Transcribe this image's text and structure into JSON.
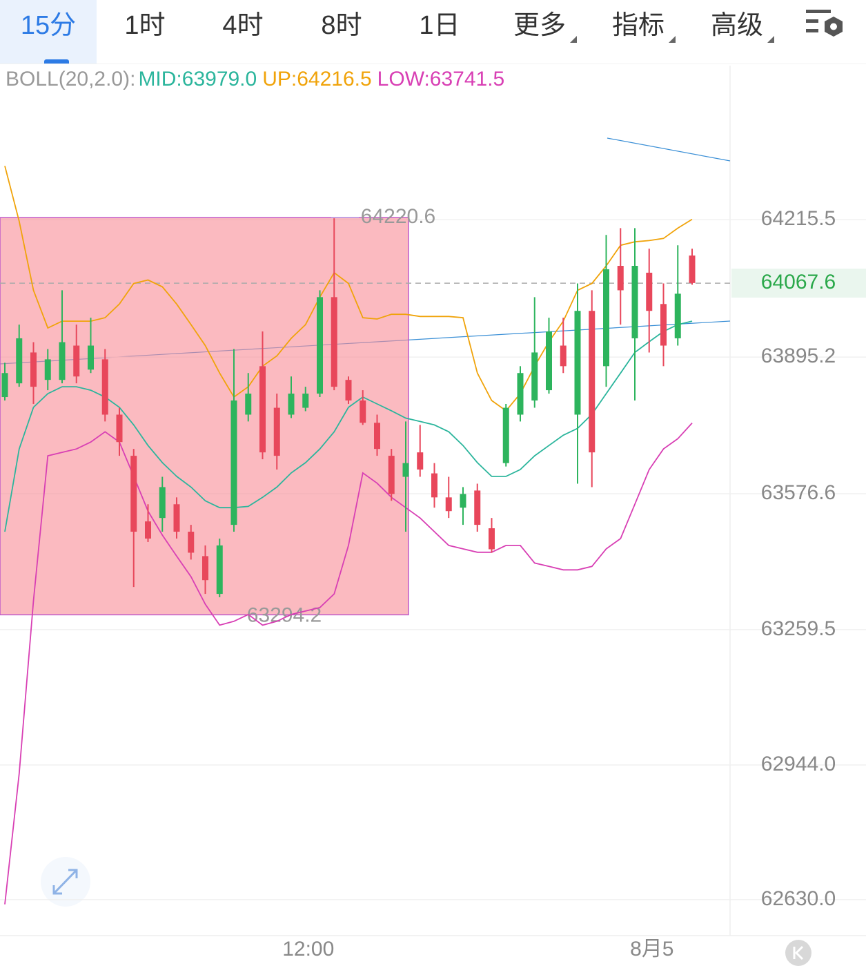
{
  "chart_data": {
    "type": "candlestick",
    "tabs": [
      "15分",
      "1时",
      "4时",
      "8时",
      "1日",
      "更多",
      "指标",
      "高级"
    ],
    "active_tab": 0,
    "indicator_label": "BOLL(20,2.0):",
    "up_color": "#2db45d",
    "down_color": "#e8475b",
    "categories": [
      null,
      null,
      null,
      null,
      null,
      null,
      null,
      null,
      null,
      null,
      null,
      null,
      null,
      null,
      null,
      null,
      null,
      null,
      null,
      null,
      null,
      "12:00",
      null,
      null,
      null,
      null,
      null,
      null,
      null,
      null,
      null,
      null,
      null,
      null,
      null,
      null,
      null,
      null,
      null,
      null,
      null,
      null,
      null,
      null,
      null,
      "8月5",
      null,
      null,
      null
    ],
    "open": [
      63802,
      63834,
      63906,
      63842,
      63842,
      63922,
      63866,
      63890,
      63761,
      63665,
      63512,
      63520,
      63552,
      63488,
      63431,
      63343,
      63504,
      63761,
      63874,
      63777,
      63761,
      63777,
      63810,
      64035,
      63842,
      63794,
      63742,
      63665,
      63616,
      63673,
      63624,
      63568,
      63544,
      63584,
      63496,
      63648,
      63761,
      63794,
      63818,
      63922,
      63761,
      64003,
      63874,
      64108,
      63939,
      64092,
      64019,
      63939,
      64132
    ],
    "high": [
      63882,
      63971,
      63930,
      63914,
      64051,
      63971,
      63987,
      63914,
      63777,
      63681,
      63552,
      63616,
      63568,
      63504,
      63456,
      63472,
      63914,
      63858,
      63955,
      63810,
      63850,
      63826,
      64051,
      64219,
      63850,
      63818,
      63761,
      63681,
      63745,
      63737,
      63648,
      63616,
      63592,
      63600,
      63520,
      63786,
      63874,
      64035,
      63987,
      63987,
      64067,
      64051,
      64180,
      64196,
      64196,
      64148,
      64067,
      64156,
      64148
    ],
    "low": [
      63794,
      63826,
      63786,
      63818,
      63834,
      63834,
      63858,
      63745,
      63665,
      63359,
      63464,
      63488,
      63472,
      63423,
      63343,
      63335,
      63488,
      63745,
      63657,
      63633,
      63753,
      63769,
      63802,
      63818,
      63786,
      63737,
      63665,
      63560,
      63488,
      63616,
      63544,
      63520,
      63504,
      63488,
      63439,
      63640,
      63745,
      63777,
      63810,
      63858,
      63600,
      63592,
      63826,
      63971,
      63794,
      63906,
      63874,
      63922,
      64064
    ],
    "close": [
      63858,
      63939,
      63826,
      63890,
      63930,
      63850,
      63922,
      63761,
      63697,
      63488,
      63472,
      63592,
      63488,
      63439,
      63375,
      63456,
      63794,
      63810,
      63673,
      63665,
      63810,
      63810,
      64035,
      63826,
      63794,
      63742,
      63681,
      63576,
      63648,
      63633,
      63568,
      63536,
      63576,
      63504,
      63447,
      63777,
      63858,
      63906,
      63955,
      63874,
      64003,
      63673,
      64100,
      64051,
      64108,
      64003,
      63922,
      64043,
      64068
    ],
    "series": [
      {
        "name": "MID:63979.0",
        "color": "#2bb59c",
        "values": [
          63488,
          63681,
          63778,
          63810,
          63826,
          63826,
          63818,
          63802,
          63778,
          63737,
          63689,
          63649,
          63617,
          63592,
          63560,
          63544,
          63544,
          63547,
          63568,
          63592,
          63625,
          63649,
          63681,
          63721,
          63778,
          63802,
          63786,
          63770,
          63753,
          63745,
          63737,
          63721,
          63689,
          63649,
          63617,
          63617,
          63633,
          63665,
          63689,
          63713,
          63729,
          63762,
          63810,
          63858,
          63906,
          63931,
          63955,
          63971,
          63979.0
        ]
      },
      {
        "name": "UP:64216.5",
        "color": "#f0a30a",
        "values": [
          64341,
          64212,
          64051,
          63963,
          63979,
          63979,
          63979,
          63987,
          64019,
          64067,
          64075,
          64059,
          64019,
          63971,
          63922,
          63858,
          63802,
          63826,
          63874,
          63898,
          63939,
          63971,
          64035,
          64092,
          64067,
          63987,
          63984,
          63995,
          63995,
          63990,
          63990,
          63990,
          63987,
          63858,
          63794,
          63770,
          63810,
          63874,
          63931,
          63979,
          64051,
          64067,
          64108,
          64156,
          64164,
          64167,
          64172,
          64196,
          64216.5
        ]
      },
      {
        "name": "LOW:63741.5",
        "color": "#d83fb4",
        "values": [
          62619,
          62924,
          63327,
          63665,
          63673,
          63681,
          63697,
          63721,
          63697,
          63617,
          63536,
          63480,
          63431,
          63383,
          63319,
          63270,
          63279,
          63295,
          63270,
          63279,
          63295,
          63303,
          63311,
          63343,
          63456,
          63625,
          63601,
          63568,
          63544,
          63520,
          63488,
          63456,
          63448,
          63440,
          63440,
          63456,
          63456,
          63415,
          63407,
          63399,
          63399,
          63407,
          63448,
          63472,
          63552,
          63633,
          63681,
          63705,
          63741.5
        ]
      }
    ],
    "last_price": 64067.6,
    "range_box": {
      "high": 64220.6,
      "low": 63294.2
    },
    "ylim": [
      62546,
      64575
    ],
    "yticks": [
      64215.5,
      63895.2,
      63576.6,
      63259.5,
      {
        "value": 62944,
        "label": "62944.0"
      },
      {
        "value": 62630,
        "label": "62630.0"
      }
    ],
    "grid": true
  }
}
